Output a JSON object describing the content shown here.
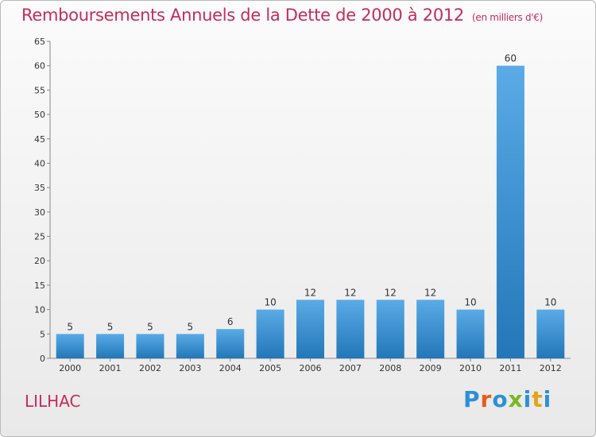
{
  "header": {
    "title": "Remboursements Annuels de la Dette de 2000 à 2012",
    "unit": "(en milliers d'€)"
  },
  "commune": "LILHAC",
  "logo": {
    "text": "Proxiti",
    "letters": [
      "P",
      "r",
      "o",
      "x",
      "i",
      "t",
      "i"
    ],
    "colors": [
      "#2d8fd6",
      "#e85c1b",
      "#2d8fd6",
      "#7ab823",
      "#2d8fd6",
      "#e6a317",
      "#2d8fd6"
    ]
  },
  "colors": {
    "title": "#c42d5b",
    "bar_top": "#5aabe6",
    "bar_bottom": "#2277b8"
  },
  "chart_data": {
    "type": "bar",
    "categories": [
      "2000",
      "2001",
      "2002",
      "2003",
      "2004",
      "2005",
      "2006",
      "2007",
      "2008",
      "2009",
      "2010",
      "2011",
      "2012"
    ],
    "values": [
      5,
      5,
      5,
      5,
      6,
      10,
      12,
      12,
      12,
      12,
      10,
      60,
      10
    ],
    "ylim": [
      0,
      65
    ],
    "yticks": [
      0,
      5,
      10,
      15,
      20,
      25,
      30,
      35,
      40,
      45,
      50,
      55,
      60,
      65
    ],
    "grid": false,
    "data_labels": true
  }
}
